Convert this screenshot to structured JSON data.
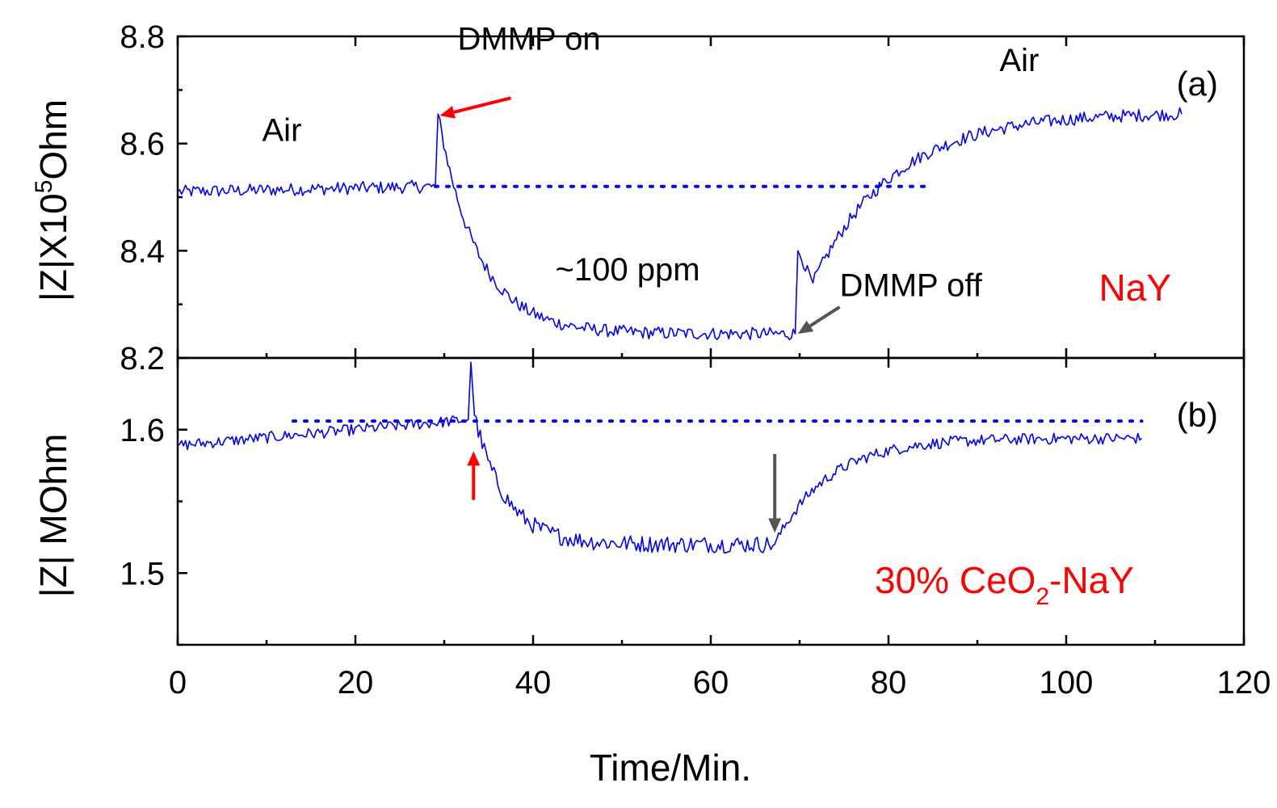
{
  "chart_data": [
    {
      "type": "line",
      "panel_tag": "(a)",
      "ylabel_main": "|Z|X10",
      "ylabel_sup": "5",
      "ylabel_tail": "Ohm",
      "xlim": [
        0,
        120
      ],
      "ylim": [
        8.2,
        8.8
      ],
      "yticks": [
        8.2,
        8.4,
        8.6,
        8.8
      ],
      "yticklabels": [
        "8.2",
        "8.4",
        "8.6",
        "8.8"
      ],
      "series": [
        {
          "name": "NaY",
          "color": "#0000ff",
          "segments": [
            {
              "x0": 0,
              "x1": 29,
              "y0": 8.51,
              "y1": 8.52,
              "shape": "linear",
              "noise": 0.012
            },
            {
              "x0": 29,
              "x1": 29.3,
              "y0": 8.52,
              "y1": 8.655,
              "shape": "linear",
              "noise": 0
            },
            {
              "x0": 29.3,
              "x1": 69.5,
              "y0": 8.655,
              "y1": 8.245,
              "shape": "exp",
              "tau": 4.5,
              "noise": 0.012
            },
            {
              "x0": 69.5,
              "x1": 69.8,
              "y0": 8.245,
              "y1": 8.4,
              "shape": "linear",
              "noise": 0
            },
            {
              "x0": 69.8,
              "x1": 71.5,
              "y0": 8.4,
              "y1": 8.34,
              "shape": "linear",
              "noise": 0.01
            },
            {
              "x0": 71.5,
              "x1": 113,
              "y0": 8.34,
              "y1": 8.655,
              "shape": "rise",
              "tau": 9,
              "noise": 0.012
            }
          ]
        }
      ],
      "baseline": {
        "y": 8.52,
        "x0": 29,
        "x1": 84
      },
      "annotations": [
        {
          "text": "Air",
          "x": 9.5,
          "y": 8.605
        },
        {
          "text": "DMMP on",
          "x": 31.5,
          "y": 8.775
        },
        {
          "text": "Air",
          "x": 92.5,
          "y": 8.735
        },
        {
          "text": "~100 ppm",
          "x": 42.5,
          "y": 8.345
        },
        {
          "text": "DMMP off",
          "x": 74.5,
          "y": 8.315
        }
      ],
      "arrows": [
        {
          "color": "#ff0000",
          "from": [
            37.5,
            8.685
          ],
          "to": [
            29.5,
            8.652
          ]
        },
        {
          "color": "#555555",
          "from": [
            74.5,
            8.295
          ],
          "to": [
            69.8,
            8.245
          ]
        }
      ],
      "material_label": "NaY"
    },
    {
      "type": "line",
      "panel_tag": "(b)",
      "ylabel": "|Z| MOhm",
      "xlim": [
        0,
        120
      ],
      "ylim": [
        1.45,
        1.65
      ],
      "yticks": [
        1.5,
        1.6
      ],
      "yticklabels": [
        "1.5",
        "1.6"
      ],
      "xticks": [
        0,
        20,
        40,
        60,
        80,
        100,
        120
      ],
      "xticklabels": [
        "0",
        "20",
        "40",
        "60",
        "80",
        "100",
        "120"
      ],
      "xlabel": "Time/Min.",
      "series": [
        {
          "name": "30% CeO2-NaY",
          "color": "#0000ff",
          "segments": [
            {
              "x0": 0,
              "x1": 32.7,
              "y0": 1.589,
              "y1": 1.607,
              "shape": "linear",
              "noise": 0.004
            },
            {
              "x0": 32.7,
              "x1": 33.0,
              "y0": 1.607,
              "y1": 1.647,
              "shape": "linear",
              "noise": 0
            },
            {
              "x0": 33.0,
              "x1": 33.4,
              "y0": 1.647,
              "y1": 1.61,
              "shape": "linear",
              "noise": 0
            },
            {
              "x0": 33.4,
              "x1": 67.2,
              "y0": 1.61,
              "y1": 1.52,
              "shape": "exp",
              "tau": 3.5,
              "noise": 0.006
            },
            {
              "x0": 67.2,
              "x1": 108.5,
              "y0": 1.52,
              "y1": 1.594,
              "shape": "rise",
              "tau": 6,
              "noise": 0.004
            }
          ]
        }
      ],
      "baseline": {
        "y": 1.606,
        "x0": 13,
        "x1": 108.5
      },
      "arrows": [
        {
          "color": "#ff0000",
          "from": [
            33.3,
            1.551
          ],
          "to": [
            33.3,
            1.585
          ]
        },
        {
          "color": "#555555",
          "from": [
            67.2,
            1.583
          ],
          "to": [
            67.2,
            1.528
          ]
        }
      ],
      "material_label_pre": "30% CeO",
      "material_label_sub": "2",
      "material_label_post": "-NaY"
    }
  ]
}
